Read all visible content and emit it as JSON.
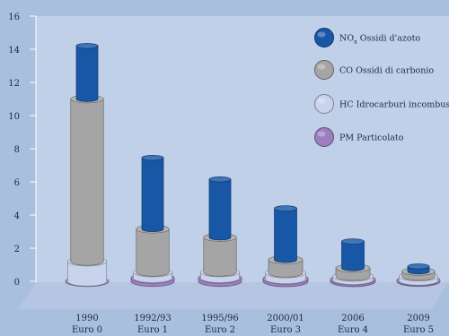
{
  "chart_data": {
    "type": "bar",
    "stacked": true,
    "style": "3d-cylinders",
    "categories": [
      [
        "1990",
        "Euro 0"
      ],
      [
        "1992/93",
        "Euro 1"
      ],
      [
        "1995/96",
        "Euro 2"
      ],
      [
        "2000/01",
        "Euro 3"
      ],
      [
        "2006",
        "Euro 4"
      ],
      [
        "2009",
        "Euro 5"
      ]
    ],
    "ylim": [
      0,
      16
    ],
    "yticks": [
      0,
      2,
      4,
      6,
      8,
      10,
      12,
      14,
      16
    ],
    "grid": false,
    "legend_position": "top-right",
    "series": [
      {
        "name": "PM Particolato",
        "color": "#9b7fc0",
        "values": [
          0,
          0.2,
          0.2,
          0.15,
          0.1,
          0.05
        ]
      },
      {
        "name": "HC Idrocarburi incombusti",
        "color": "#c9d3ec",
        "values": [
          1.2,
          0.35,
          0.35,
          0.35,
          0.2,
          0.25
        ]
      },
      {
        "name": "CO Ossidi di carbonio",
        "color": "#a5a5a5",
        "values": [
          9.8,
          2.6,
          2.1,
          0.8,
          0.5,
          0.3
        ]
      },
      {
        "name": "NOx Ossidi d'azoto",
        "color": "#1757a6",
        "values": [
          3.2,
          4.3,
          3.5,
          3.1,
          1.6,
          0.3
        ]
      }
    ],
    "legend": [
      {
        "label_main": "NO",
        "label_sub": "x",
        "label_rest": " Ossidi d'azoto",
        "color": "#1757a6"
      },
      {
        "label_main": "CO Ossidi di carbonio",
        "label_sub": "",
        "label_rest": "",
        "color": "#a5a5a5"
      },
      {
        "label_main": "HC Idrocarburi incombusti",
        "label_sub": "",
        "label_rest": "",
        "color": "#c9d3ec"
      },
      {
        "label_main": "PM Particolato",
        "label_sub": "",
        "label_rest": "",
        "color": "#9b7fc0"
      }
    ]
  }
}
